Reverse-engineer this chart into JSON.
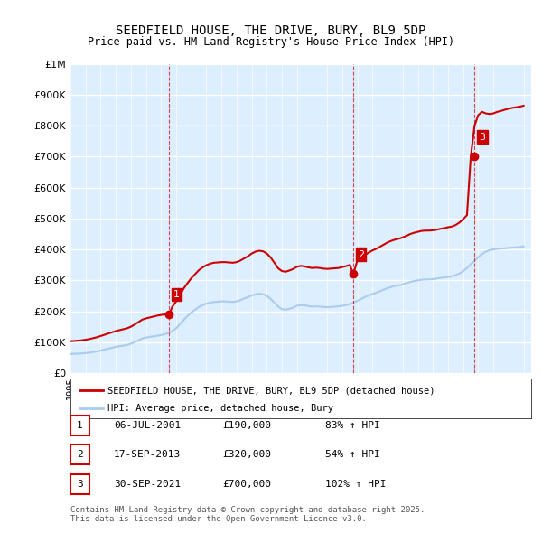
{
  "title": "SEEDFIELD HOUSE, THE DRIVE, BURY, BL9 5DP",
  "subtitle": "Price paid vs. HM Land Registry's House Price Index (HPI)",
  "ylabel_ticks": [
    "£0",
    "£100K",
    "£200K",
    "£300K",
    "£400K",
    "£500K",
    "£600K",
    "£700K",
    "£800K",
    "£900K",
    "£1M"
  ],
  "ylim": [
    0,
    1000000
  ],
  "xlim_start": 1995.0,
  "xlim_end": 2025.5,
  "bg_color": "#ddeeff",
  "plot_bg": "#ddeeff",
  "grid_color": "#ffffff",
  "red_line_color": "#cc0000",
  "blue_line_color": "#aaccee",
  "sale_marker_color": "#cc0000",
  "sale_dashed_color": "#cc0000",
  "sales": [
    {
      "label": "1",
      "date_num": 2001.52,
      "price": 190000
    },
    {
      "label": "2",
      "date_num": 2013.72,
      "price": 320000
    },
    {
      "label": "3",
      "date_num": 2021.75,
      "price": 700000
    }
  ],
  "sale_table": [
    {
      "num": "1",
      "date": "06-JUL-2001",
      "price": "£190,000",
      "change": "83% ↑ HPI"
    },
    {
      "num": "2",
      "date": "17-SEP-2013",
      "price": "£320,000",
      "change": "54% ↑ HPI"
    },
    {
      "num": "3",
      "date": "30-SEP-2021",
      "price": "£700,000",
      "change": "102% ↑ HPI"
    }
  ],
  "legend_red": "SEEDFIELD HOUSE, THE DRIVE, BURY, BL9 5DP (detached house)",
  "legend_blue": "HPI: Average price, detached house, Bury",
  "footer": "Contains HM Land Registry data © Crown copyright and database right 2025.\nThis data is licensed under the Open Government Licence v3.0.",
  "hpi_data": {
    "years": [
      1995.0,
      1995.25,
      1995.5,
      1995.75,
      1996.0,
      1996.25,
      1996.5,
      1996.75,
      1997.0,
      1997.25,
      1997.5,
      1997.75,
      1998.0,
      1998.25,
      1998.5,
      1998.75,
      1999.0,
      1999.25,
      1999.5,
      1999.75,
      2000.0,
      2000.25,
      2000.5,
      2000.75,
      2001.0,
      2001.25,
      2001.5,
      2001.75,
      2002.0,
      2002.25,
      2002.5,
      2002.75,
      2003.0,
      2003.25,
      2003.5,
      2003.75,
      2004.0,
      2004.25,
      2004.5,
      2004.75,
      2005.0,
      2005.25,
      2005.5,
      2005.75,
      2006.0,
      2006.25,
      2006.5,
      2006.75,
      2007.0,
      2007.25,
      2007.5,
      2007.75,
      2008.0,
      2008.25,
      2008.5,
      2008.75,
      2009.0,
      2009.25,
      2009.5,
      2009.75,
      2010.0,
      2010.25,
      2010.5,
      2010.75,
      2011.0,
      2011.25,
      2011.5,
      2011.75,
      2012.0,
      2012.25,
      2012.5,
      2012.75,
      2013.0,
      2013.25,
      2013.5,
      2013.75,
      2014.0,
      2014.25,
      2014.5,
      2014.75,
      2015.0,
      2015.25,
      2015.5,
      2015.75,
      2016.0,
      2016.25,
      2016.5,
      2016.75,
      2017.0,
      2017.25,
      2017.5,
      2017.75,
      2018.0,
      2018.25,
      2018.5,
      2018.75,
      2019.0,
      2019.25,
      2019.5,
      2019.75,
      2020.0,
      2020.25,
      2020.5,
      2020.75,
      2021.0,
      2021.25,
      2021.5,
      2021.75,
      2022.0,
      2022.25,
      2022.5,
      2022.75,
      2023.0,
      2023.25,
      2023.5,
      2023.75,
      2024.0,
      2024.25,
      2024.5,
      2024.75,
      2025.0
    ],
    "values": [
      62000,
      62500,
      63000,
      63500,
      65000,
      66000,
      68000,
      70000,
      73000,
      76000,
      79000,
      82000,
      85000,
      87000,
      89000,
      91000,
      95000,
      100000,
      106000,
      112000,
      115000,
      117000,
      119000,
      121000,
      123000,
      126000,
      130000,
      136000,
      145000,
      158000,
      172000,
      185000,
      196000,
      205000,
      214000,
      220000,
      225000,
      228000,
      230000,
      231000,
      232000,
      232000,
      231000,
      230000,
      232000,
      236000,
      241000,
      246000,
      251000,
      255000,
      257000,
      255000,
      250000,
      240000,
      228000,
      215000,
      207000,
      205000,
      208000,
      212000,
      218000,
      220000,
      219000,
      217000,
      215000,
      216000,
      215000,
      214000,
      213000,
      214000,
      215000,
      216000,
      218000,
      220000,
      223000,
      228000,
      234000,
      240000,
      246000,
      251000,
      256000,
      260000,
      265000,
      270000,
      275000,
      279000,
      282000,
      284000,
      287000,
      291000,
      295000,
      298000,
      300000,
      302000,
      303000,
      303000,
      304000,
      306000,
      308000,
      310000,
      311000,
      313000,
      317000,
      322000,
      330000,
      340000,
      352000,
      362000,
      375000,
      385000,
      393000,
      398000,
      400000,
      402000,
      403000,
      404000,
      405000,
      406000,
      407000,
      408000,
      410000
    ]
  },
  "property_data": {
    "years": [
      1995.0,
      1995.25,
      1995.5,
      1995.75,
      1996.0,
      1996.25,
      1996.5,
      1996.75,
      1997.0,
      1997.25,
      1997.5,
      1997.75,
      1998.0,
      1998.25,
      1998.5,
      1998.75,
      1999.0,
      1999.25,
      1999.5,
      1999.75,
      2000.0,
      2000.25,
      2000.5,
      2000.75,
      2001.0,
      2001.25,
      2001.52,
      2001.75,
      2002.0,
      2002.25,
      2002.5,
      2002.75,
      2003.0,
      2003.25,
      2003.5,
      2003.75,
      2004.0,
      2004.25,
      2004.5,
      2004.75,
      2005.0,
      2005.25,
      2005.5,
      2005.75,
      2006.0,
      2006.25,
      2006.5,
      2006.75,
      2007.0,
      2007.25,
      2007.5,
      2007.75,
      2008.0,
      2008.25,
      2008.5,
      2008.75,
      2009.0,
      2009.25,
      2009.5,
      2009.75,
      2010.0,
      2010.25,
      2010.5,
      2010.75,
      2011.0,
      2011.25,
      2011.5,
      2011.75,
      2012.0,
      2012.25,
      2012.5,
      2012.75,
      2013.0,
      2013.25,
      2013.5,
      2013.72,
      2014.0,
      2014.25,
      2014.5,
      2014.75,
      2015.0,
      2015.25,
      2015.5,
      2015.75,
      2016.0,
      2016.25,
      2016.5,
      2016.75,
      2017.0,
      2017.25,
      2017.5,
      2017.75,
      2018.0,
      2018.25,
      2018.5,
      2018.75,
      2019.0,
      2019.25,
      2019.5,
      2019.75,
      2020.0,
      2020.25,
      2020.5,
      2020.75,
      2021.0,
      2021.25,
      2021.5,
      2021.75,
      2022.0,
      2022.25,
      2022.5,
      2022.75,
      2023.0,
      2023.25,
      2023.5,
      2023.75,
      2024.0,
      2024.25,
      2024.5,
      2024.75,
      2025.0
    ],
    "values": [
      103000,
      104000,
      105000,
      106000,
      108000,
      110000,
      113000,
      116000,
      120000,
      124000,
      128000,
      132000,
      136000,
      139000,
      142000,
      145000,
      150000,
      157000,
      165000,
      173000,
      177000,
      180000,
      183000,
      186000,
      188000,
      190000,
      190000,
      215000,
      232000,
      253000,
      274000,
      291000,
      307000,
      320000,
      333000,
      342000,
      349000,
      354000,
      357000,
      358000,
      359000,
      359000,
      358000,
      357000,
      359000,
      364000,
      371000,
      378000,
      387000,
      393000,
      396000,
      394000,
      387000,
      374000,
      357000,
      339000,
      330000,
      328000,
      332000,
      337000,
      344000,
      347000,
      345000,
      342000,
      340000,
      341000,
      340000,
      338000,
      337000,
      338000,
      339000,
      340000,
      343000,
      346000,
      350000,
      320000,
      365000,
      374000,
      382000,
      390000,
      397000,
      402000,
      409000,
      416000,
      423000,
      428000,
      432000,
      435000,
      439000,
      444000,
      450000,
      454000,
      457000,
      460000,
      461000,
      461000,
      462000,
      464000,
      467000,
      469000,
      472000,
      474000,
      479000,
      487000,
      498000,
      511000,
      700000,
      800000,
      835000,
      845000,
      840000,
      838000,
      840000,
      845000,
      848000,
      852000,
      855000,
      858000,
      860000,
      862000,
      865000
    ]
  }
}
